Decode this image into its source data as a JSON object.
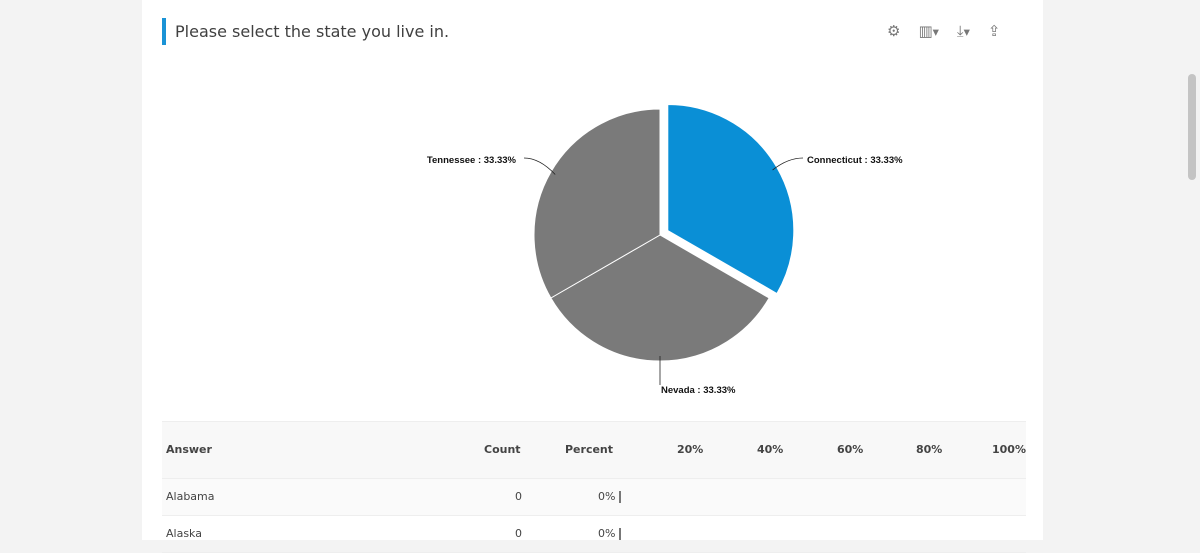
{
  "question": {
    "title": "Please select the state you live in."
  },
  "toolbar": {
    "icons": [
      "gear-icon",
      "bar-chart-icon",
      "download-icon",
      "share-icon"
    ]
  },
  "chart_data": {
    "type": "pie",
    "slices": [
      {
        "label": "Connecticut",
        "value": 33.33,
        "display": "Connecticut : 33.33%",
        "color": "#0a8fd6",
        "exploded": true
      },
      {
        "label": "Nevada",
        "value": 33.33,
        "display": "Nevada : 33.33%",
        "color": "#7a7a7a"
      },
      {
        "label": "Tennessee",
        "value": 33.33,
        "display": "Tennessee : 33.33%",
        "color": "#7a7a7a"
      }
    ]
  },
  "table": {
    "headers": {
      "answer": "Answer",
      "count": "Count",
      "percent": "Percent",
      "scale": [
        "20%",
        "40%",
        "60%",
        "80%",
        "100%"
      ]
    },
    "rows": [
      {
        "answer": "Alabama",
        "count": "0",
        "percent": "0%"
      },
      {
        "answer": "Alaska",
        "count": "0",
        "percent": "0%"
      }
    ]
  }
}
